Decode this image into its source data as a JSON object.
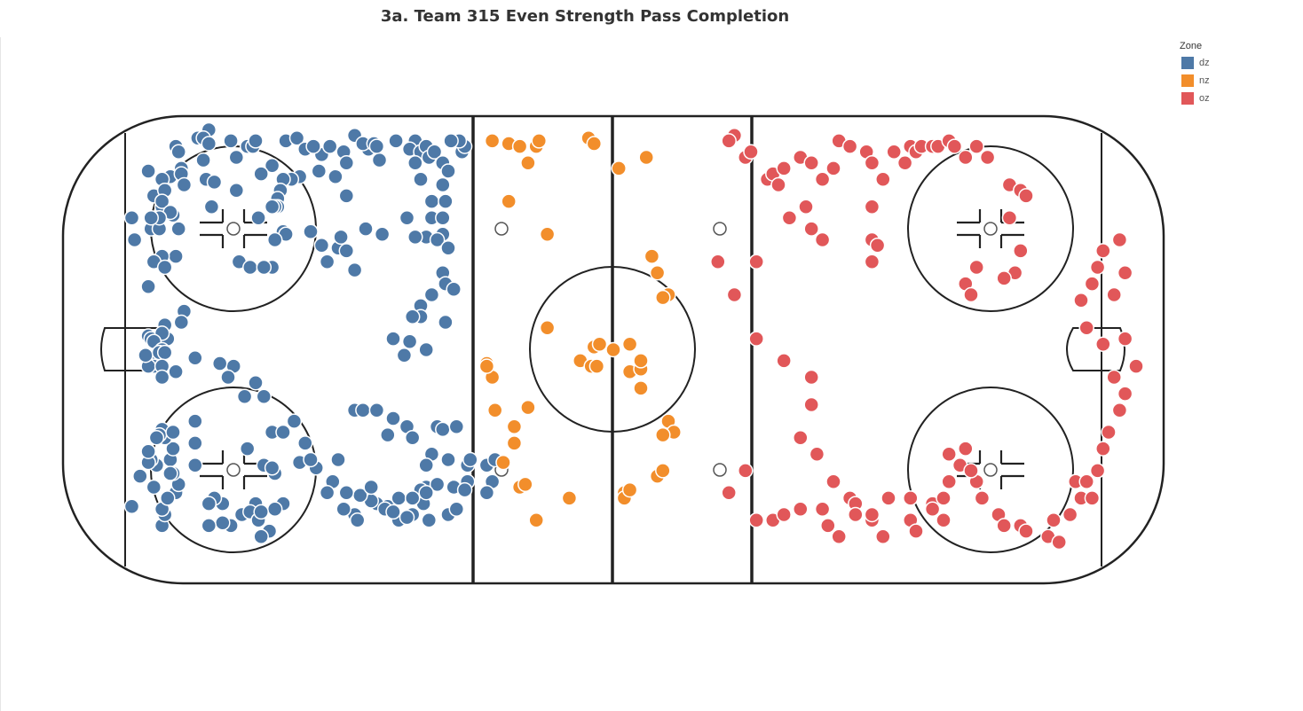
{
  "title": "3a. Team 315 Even Strength Pass Completion",
  "legend": {
    "title": "Zone",
    "items": [
      {
        "label": "dz",
        "color": "#4e79a7"
      },
      {
        "label": "nz",
        "color": "#f28e2b"
      },
      {
        "label": "oz",
        "color": "#e15759"
      }
    ]
  },
  "chart_data": {
    "type": "scatter",
    "title": "3a. Team 315 Even Strength Pass Completion",
    "xlabel": "",
    "ylabel": "",
    "xlim": [
      -100,
      100
    ],
    "ylim": [
      -42.5,
      42.5
    ],
    "grid": false,
    "legend_position": "top-right",
    "background": "hockey rink",
    "series": [
      {
        "name": "dz",
        "color": "#4e79a7",
        "points": [
          [
            -73.5,
            40
          ],
          [
            -75.5,
            38.5
          ],
          [
            -74.5,
            38.5
          ],
          [
            -73.5,
            37.5
          ],
          [
            -79.5,
            37
          ],
          [
            -79,
            36
          ],
          [
            -74.5,
            34.5
          ],
          [
            -78.5,
            33
          ],
          [
            -68.5,
            35
          ],
          [
            -69.5,
            38
          ],
          [
            -66.5,
            37
          ],
          [
            -65.5,
            37
          ],
          [
            -65,
            38
          ],
          [
            -59.5,
            38
          ],
          [
            -57.5,
            38.5
          ],
          [
            -56,
            36.5
          ],
          [
            -53,
            35.5
          ],
          [
            -54.5,
            37
          ],
          [
            -51.5,
            37
          ],
          [
            -49,
            36
          ],
          [
            -48.5,
            34
          ],
          [
            -50.5,
            31.5
          ],
          [
            -48.5,
            28
          ],
          [
            -47,
            39
          ],
          [
            -53.5,
            32.5
          ],
          [
            -57,
            31.5
          ],
          [
            -58.5,
            31
          ],
          [
            -74,
            31
          ],
          [
            -72.5,
            30.5
          ],
          [
            -73,
            26
          ],
          [
            -68.5,
            29
          ],
          [
            -62,
            33.5
          ],
          [
            -64,
            32
          ],
          [
            -60,
            31
          ],
          [
            -60.5,
            29
          ],
          [
            -61,
            27.5
          ],
          [
            -61,
            26
          ],
          [
            -61.5,
            26
          ],
          [
            -62,
            26
          ],
          [
            -60,
            21.5
          ],
          [
            -59.5,
            21
          ],
          [
            -61.5,
            20
          ],
          [
            -64.5,
            24
          ],
          [
            -55,
            21.5
          ],
          [
            -53,
            19
          ],
          [
            -68,
            16
          ],
          [
            -66,
            15
          ],
          [
            -62,
            15
          ],
          [
            -63.5,
            15
          ],
          [
            -79.5,
            17
          ],
          [
            -83.5,
            28
          ],
          [
            -84.5,
            32.5
          ],
          [
            -80.5,
            31.5
          ],
          [
            -82,
            31
          ],
          [
            -81.5,
            29
          ],
          [
            -82,
            26
          ],
          [
            -84,
            22
          ],
          [
            -82.5,
            22
          ],
          [
            -80,
            24.5
          ],
          [
            -82,
            27
          ],
          [
            -78.5,
            32
          ],
          [
            -78,
            30
          ],
          [
            -79,
            22
          ],
          [
            -80.5,
            25
          ],
          [
            -87.5,
            24
          ],
          [
            -82.5,
            24
          ],
          [
            -84,
            24
          ],
          [
            -82,
            17
          ],
          [
            -87,
            20
          ],
          [
            -83.5,
            16
          ],
          [
            -84.5,
            11.5
          ],
          [
            -81.5,
            15
          ],
          [
            -78,
            7
          ],
          [
            -78.5,
            5
          ],
          [
            -81.5,
            4.5
          ],
          [
            -84.5,
            2.5
          ],
          [
            -84,
            2
          ],
          [
            -81,
            2
          ],
          [
            -82,
            3
          ],
          [
            -83.5,
            1.5
          ],
          [
            -82,
            0
          ],
          [
            -84,
            -1.5
          ],
          [
            -83.5,
            -3
          ],
          [
            -84.5,
            -3
          ],
          [
            -85,
            -1
          ],
          [
            -82.5,
            -0.5
          ],
          [
            -81.5,
            -0.5
          ],
          [
            -82,
            -3
          ],
          [
            -82,
            -5
          ],
          [
            -79.5,
            -4
          ],
          [
            -76,
            -1.5
          ],
          [
            -69,
            -3
          ],
          [
            -71.5,
            -2.5
          ],
          [
            -63.5,
            -8.5
          ],
          [
            -65,
            -6
          ],
          [
            -70,
            -5
          ],
          [
            -62,
            -15
          ],
          [
            -63.5,
            -21
          ],
          [
            -67,
            -8.5
          ],
          [
            -56,
            -17
          ],
          [
            -54,
            -21.5
          ],
          [
            -58,
            -13
          ],
          [
            -60,
            -15
          ],
          [
            -61.5,
            -22.5
          ],
          [
            -62,
            -21.5
          ],
          [
            -57,
            -20.5
          ],
          [
            -66.5,
            -18
          ],
          [
            -60,
            -28
          ],
          [
            -61.5,
            -29
          ],
          [
            -65,
            -28
          ],
          [
            -62.5,
            -33
          ],
          [
            -64,
            -34
          ],
          [
            -67.5,
            -30
          ],
          [
            -66,
            -29.5
          ],
          [
            -64.5,
            -31
          ],
          [
            -64,
            -29.5
          ],
          [
            -71,
            -28
          ],
          [
            -69.5,
            -32
          ],
          [
            -71,
            -31.5
          ],
          [
            -72.5,
            -27
          ],
          [
            -73.5,
            -28
          ],
          [
            -73.5,
            -32
          ],
          [
            -79.5,
            -26
          ],
          [
            -82,
            -32
          ],
          [
            -81.5,
            -30
          ],
          [
            -82,
            -29
          ],
          [
            -81,
            -27
          ],
          [
            -79,
            -24.5
          ],
          [
            -80,
            -22.5
          ],
          [
            -83,
            -21
          ],
          [
            -80.5,
            -20
          ],
          [
            -80.5,
            -22.5
          ],
          [
            -80,
            -18
          ],
          [
            -81.5,
            -16
          ],
          [
            -82,
            -14.5
          ],
          [
            -82.5,
            -15.5
          ],
          [
            -83,
            -16
          ],
          [
            -84,
            -20
          ],
          [
            -80,
            -15
          ],
          [
            -76,
            -21
          ],
          [
            -76,
            -17
          ],
          [
            -76,
            -13
          ],
          [
            -87.5,
            -28.5
          ],
          [
            -86,
            -23
          ],
          [
            -84.5,
            -20.5
          ],
          [
            -83.5,
            -25
          ],
          [
            -84.5,
            -18.5
          ],
          [
            -44.5,
            36.5
          ],
          [
            -45.5,
            37.5
          ],
          [
            -43.5,
            37.5
          ],
          [
            -42.5,
            34.5
          ],
          [
            -43,
            37
          ],
          [
            -39.5,
            38
          ],
          [
            -36,
            38
          ],
          [
            -37,
            36.5
          ],
          [
            -35,
            36
          ],
          [
            -34,
            37
          ],
          [
            -33.5,
            35
          ],
          [
            -32.5,
            36
          ],
          [
            -36,
            34
          ],
          [
            -35,
            31
          ],
          [
            -33,
            27
          ],
          [
            -34,
            20.5
          ],
          [
            -36,
            20.5
          ],
          [
            -42,
            21
          ],
          [
            -45,
            22
          ],
          [
            -50,
            18.5
          ],
          [
            -48.5,
            18
          ],
          [
            -52,
            16
          ],
          [
            -47,
            14.5
          ],
          [
            -49.5,
            20.5
          ],
          [
            -37.5,
            24
          ],
          [
            -33,
            24
          ],
          [
            -27.5,
            36
          ],
          [
            -27,
            37
          ],
          [
            -28,
            38
          ],
          [
            -29.5,
            38
          ],
          [
            -31,
            34
          ],
          [
            -30,
            32.5
          ],
          [
            -31,
            30
          ],
          [
            -30.5,
            27
          ],
          [
            -31,
            24
          ],
          [
            -31,
            21
          ],
          [
            -32,
            20
          ],
          [
            -30,
            18.5
          ],
          [
            -31,
            14
          ],
          [
            -30.5,
            12
          ],
          [
            -33,
            10
          ],
          [
            -35,
            8
          ],
          [
            -35,
            6
          ],
          [
            -36.5,
            6
          ],
          [
            -29,
            11
          ],
          [
            -30.5,
            5
          ],
          [
            -34,
            0
          ],
          [
            -40,
            2
          ],
          [
            -37,
            1.5
          ],
          [
            -38,
            -1
          ],
          [
            -47,
            -11
          ],
          [
            -45.5,
            -11
          ],
          [
            -43,
            -11
          ],
          [
            -41,
            -15.5
          ],
          [
            -40,
            -12.5
          ],
          [
            -37.5,
            -14
          ],
          [
            -32,
            -14
          ],
          [
            -33,
            -19
          ],
          [
            -34,
            -21
          ],
          [
            -36.5,
            -16
          ],
          [
            -30,
            -20
          ],
          [
            -31,
            -14.5
          ],
          [
            -28.5,
            -14
          ],
          [
            -23,
            -21
          ],
          [
            -26.5,
            -21
          ],
          [
            -26,
            -20
          ],
          [
            -21.5,
            -20
          ],
          [
            -26.5,
            -24
          ],
          [
            -34,
            -25
          ],
          [
            -35,
            -25.5
          ],
          [
            -44,
            -25
          ],
          [
            -41,
            -28.5
          ],
          [
            -43,
            -28
          ],
          [
            -44,
            -27.5
          ],
          [
            -50,
            -20
          ],
          [
            -55,
            -20
          ],
          [
            -51,
            -24
          ],
          [
            -52,
            -26
          ],
          [
            -47,
            -30
          ],
          [
            -46.5,
            -31
          ],
          [
            -39,
            -31
          ],
          [
            -33.5,
            -31
          ],
          [
            -36.5,
            -30
          ],
          [
            -34.5,
            -28
          ],
          [
            -41.5,
            -29
          ],
          [
            -46,
            -26.5
          ],
          [
            -49,
            -29
          ],
          [
            -40,
            -29.5
          ],
          [
            -37.5,
            -30.5
          ],
          [
            -32,
            -24.5
          ],
          [
            -39,
            -27
          ],
          [
            -36.5,
            -27
          ],
          [
            -34,
            -26
          ],
          [
            -44,
            -25
          ],
          [
            -48.5,
            -26
          ],
          [
            -30,
            -30
          ],
          [
            -28.5,
            -29
          ],
          [
            -29,
            -25
          ],
          [
            -27,
            -25.5
          ],
          [
            -22,
            -24
          ],
          [
            -23,
            -26
          ]
        ]
      },
      {
        "name": "nz",
        "color": "#f28e2b"
      },
      {
        "name": "oz",
        "color": "#e15759"
      }
    ],
    "points_pixel_fallback": false
  }
}
